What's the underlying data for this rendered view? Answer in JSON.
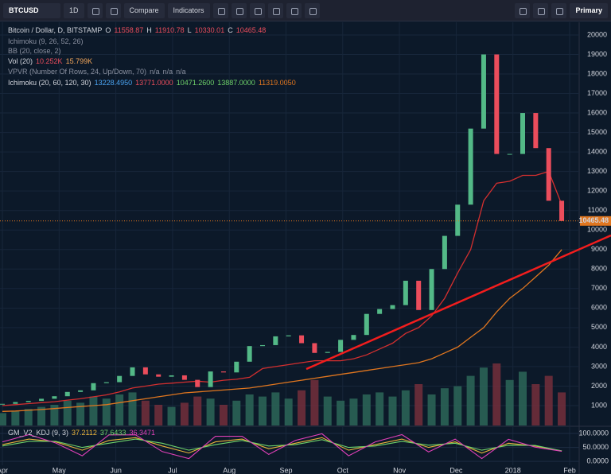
{
  "toolbar": {
    "symbol": "BTCUSD",
    "interval": "1D",
    "compare": "Compare",
    "indicators": "Indicators",
    "layout": "Primary"
  },
  "legend": {
    "main": {
      "title": "Bitcoin / Dollar, D, BITSTAMP",
      "o_key": "O",
      "open": "11558.87",
      "h_key": "H",
      "high": "11910.78",
      "l_key": "L",
      "low": "10330.01",
      "c_key": "C",
      "close": "10465.48"
    },
    "ichimoku_small": "Ichimoku (9, 26, 52, 26)",
    "bb": "BB (20, close, 2)",
    "vol": {
      "name": "Vol (20)",
      "values": [
        "10.252K",
        "15.799K"
      ]
    },
    "vpvr": {
      "name": "VPVR (Number Of Rows, 24, Up/Down, 70)",
      "values": [
        "n/a",
        "n/a",
        "n/a"
      ]
    },
    "ichimoku": {
      "name": "Ichimoku (20, 60, 120, 30)",
      "values": [
        "13228.4950",
        "13771.0000",
        "10471.2600",
        "13887.0000",
        "11319.0050"
      ]
    },
    "kdj": {
      "name": "GM_V2_KDJ (9, 3)",
      "values": [
        "37.2112",
        "37.6433",
        "36.3471"
      ]
    }
  },
  "chart_data": {
    "type": "candlestick",
    "xticks": [
      "Apr",
      "May",
      "Jun",
      "Jul",
      "Aug",
      "Sep",
      "Oct",
      "Nov",
      "Dec",
      "2018",
      "Feb"
    ],
    "ylim": [
      -20,
      20650
    ],
    "yticks": [
      1000,
      2000,
      3000,
      4000,
      5000,
      6000,
      7000,
      8000,
      9000,
      10000,
      11000,
      12000,
      13000,
      14000,
      15000,
      16000,
      17000,
      18000,
      19000,
      20000
    ],
    "last_price": 10465.48,
    "series": [
      {
        "name": "close",
        "up_color": "#53b987",
        "down_color": "#eb4d5c",
        "values": [
          1090,
          1180,
          1240,
          1350,
          1480,
          1700,
          1780,
          2150,
          2200,
          2520,
          2960,
          2600,
          2480,
          2550,
          2320,
          1950,
          2750,
          2700,
          3250,
          4050,
          4100,
          4550,
          4600,
          4200,
          3700,
          3750,
          4370,
          4620,
          5700,
          5950,
          6150,
          7400,
          5900,
          8000,
          9700,
          11300,
          15200,
          19000,
          13900,
          13900,
          16000,
          14200,
          11500,
          10465.48
        ]
      },
      {
        "name": "base",
        "color": "#d32f2f",
        "values": [
          1000,
          1050,
          1100,
          1150,
          1200,
          1280,
          1350,
          1450,
          1550,
          1700,
          1900,
          2000,
          2100,
          2150,
          2200,
          2250,
          2200,
          2300,
          2350,
          2450,
          2900,
          3000,
          3100,
          3200,
          3300,
          3300,
          3300,
          3400,
          3600,
          3900,
          4200,
          4700,
          5000,
          5600,
          6500,
          7800,
          9000,
          11500,
          12400,
          12500,
          12800,
          12800,
          13000,
          11300
        ]
      },
      {
        "name": "span",
        "color": "#e0761f",
        "values": [
          700,
          720,
          760,
          800,
          850,
          900,
          950,
          1000,
          1050,
          1150,
          1250,
          1350,
          1450,
          1550,
          1650,
          1700,
          1750,
          1800,
          1850,
          1900,
          2000,
          2100,
          2200,
          2300,
          2400,
          2500,
          2600,
          2700,
          2800,
          2900,
          3000,
          3100,
          3200,
          3400,
          3700,
          4000,
          4500,
          5000,
          5800,
          6500,
          7000,
          7600,
          8200,
          9000
        ]
      }
    ],
    "volume": {
      "color_up": "#2e6b5b",
      "color_down": "#7a2f3c",
      "values": [
        6,
        7,
        8,
        9,
        10,
        12,
        11,
        14,
        13,
        15,
        16,
        12,
        10,
        9,
        11,
        14,
        13,
        10,
        12,
        15,
        14,
        16,
        13,
        17,
        22,
        14,
        12,
        13,
        15,
        16,
        14,
        17,
        20,
        15,
        18,
        19,
        24,
        28,
        30,
        22,
        26,
        20,
        24,
        16
      ]
    },
    "oscillator": {
      "ylim": [
        -14,
        123
      ],
      "yticks": [
        {
          "value": 100,
          "label": "100.0000"
        },
        {
          "value": 50,
          "label": "50.0000"
        },
        {
          "value": 0,
          "label": "0.0000"
        }
      ],
      "series": [
        {
          "name": "K",
          "color": "#e8b33a",
          "values": [
            60,
            80,
            70,
            40,
            75,
            85,
            55,
            30,
            70,
            80,
            45,
            65,
            85,
            40,
            60,
            80,
            50,
            70,
            30,
            65,
            55,
            37.2112
          ]
        },
        {
          "name": "D",
          "color": "#6fd36a",
          "values": [
            55,
            72,
            72,
            50,
            65,
            80,
            65,
            40,
            60,
            75,
            55,
            60,
            78,
            50,
            55,
            72,
            58,
            65,
            40,
            58,
            57,
            37.6433
          ]
        },
        {
          "name": "J",
          "color": "#e040b8",
          "values": [
            70,
            96,
            66,
            20,
            95,
            95,
            35,
            10,
            90,
            90,
            25,
            75,
            99,
            20,
            70,
            96,
            34,
            80,
            10,
            79,
            51,
            36.3471
          ]
        }
      ]
    }
  }
}
